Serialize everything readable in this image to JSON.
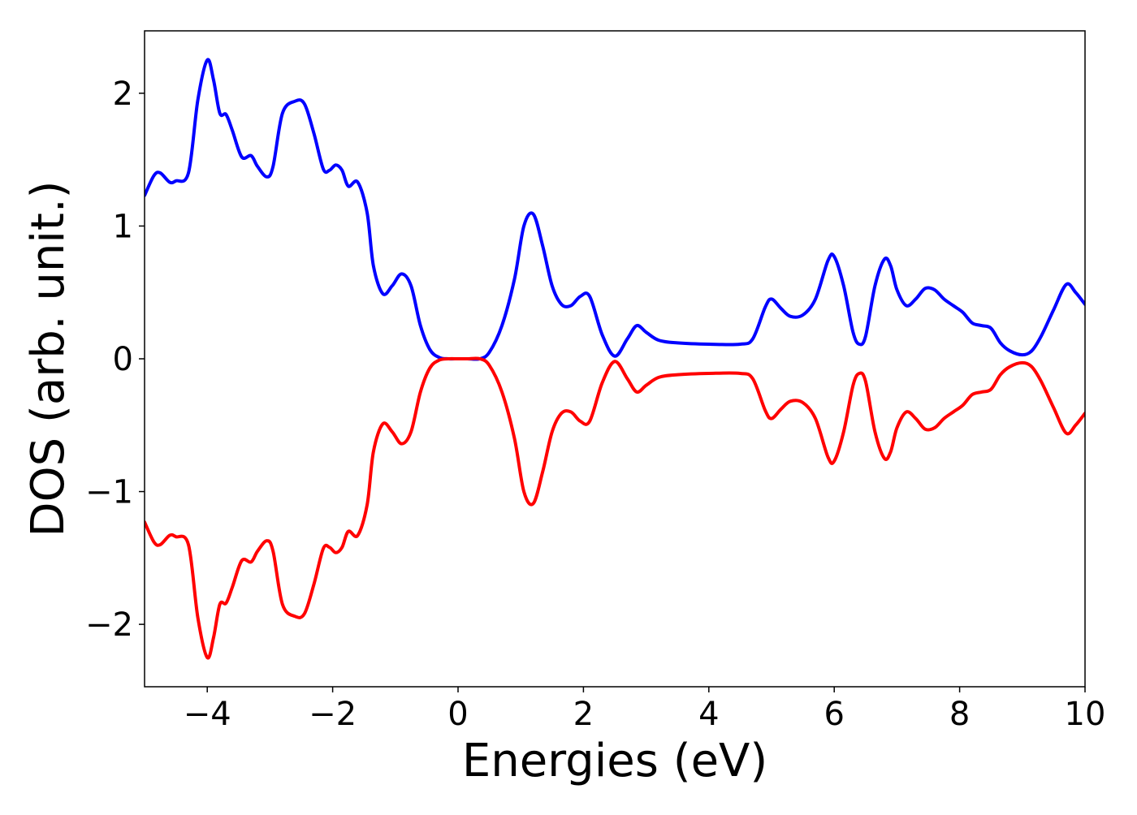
{
  "chart_data": {
    "type": "line",
    "title": "",
    "xlabel": "Energies (eV)",
    "ylabel": "DOS (arb. unit.)",
    "xlim": [
      -5,
      10
    ],
    "ylim": [
      -2.47,
      2.47
    ],
    "x_ticks": [
      -4,
      -2,
      0,
      2,
      4,
      6,
      8,
      10
    ],
    "y_ticks": [
      -2,
      -1,
      0,
      1,
      2
    ],
    "x_tick_labels": [
      "−4",
      "−2",
      "0",
      "2",
      "4",
      "6",
      "8",
      "10"
    ],
    "y_tick_labels": [
      "−2",
      "−1",
      "0",
      "1",
      "2"
    ],
    "grid": false,
    "legend": "none",
    "series": [
      {
        "color": "#0000ff",
        "x": [
          -5.0,
          -4.85,
          -4.75,
          -4.6,
          -4.5,
          -4.3,
          -4.15,
          -4.0,
          -3.9,
          -3.8,
          -3.7,
          -3.6,
          -3.45,
          -3.3,
          -3.2,
          -3.05,
          -2.95,
          -2.8,
          -2.6,
          -2.45,
          -2.3,
          -2.15,
          -2.05,
          -1.95,
          -1.85,
          -1.75,
          -1.6,
          -1.45,
          -1.35,
          -1.2,
          -1.05,
          -0.9,
          -0.75,
          -0.6,
          -0.45,
          -0.3,
          -0.15,
          0.0,
          0.15,
          0.35,
          0.5,
          0.7,
          0.9,
          1.05,
          1.2,
          1.35,
          1.5,
          1.65,
          1.8,
          1.95,
          2.1,
          2.3,
          2.5,
          2.7,
          2.85,
          3.0,
          3.2,
          3.5,
          4.0,
          4.5,
          4.7,
          4.9,
          5.0,
          5.15,
          5.3,
          5.5,
          5.7,
          5.9,
          6.0,
          6.15,
          6.3,
          6.4,
          6.5,
          6.65,
          6.8,
          6.9,
          7.0,
          7.15,
          7.3,
          7.45,
          7.6,
          7.75,
          7.9,
          8.05,
          8.2,
          8.35,
          8.5,
          8.65,
          8.8,
          9.0,
          9.15,
          9.3,
          9.5,
          9.7,
          9.85,
          10.0
        ],
        "y": [
          1.23,
          1.38,
          1.4,
          1.33,
          1.34,
          1.4,
          1.95,
          2.25,
          2.1,
          1.85,
          1.84,
          1.72,
          1.52,
          1.53,
          1.45,
          1.37,
          1.45,
          1.85,
          1.94,
          1.92,
          1.7,
          1.43,
          1.42,
          1.46,
          1.42,
          1.3,
          1.33,
          1.1,
          0.7,
          0.49,
          0.55,
          0.64,
          0.55,
          0.25,
          0.07,
          0.01,
          0.0,
          0.0,
          0.0,
          0.0,
          0.05,
          0.25,
          0.6,
          1.0,
          1.09,
          0.85,
          0.55,
          0.41,
          0.4,
          0.47,
          0.47,
          0.18,
          0.02,
          0.15,
          0.25,
          0.2,
          0.14,
          0.12,
          0.11,
          0.11,
          0.15,
          0.39,
          0.45,
          0.38,
          0.32,
          0.33,
          0.45,
          0.74,
          0.77,
          0.55,
          0.2,
          0.11,
          0.17,
          0.55,
          0.75,
          0.7,
          0.52,
          0.4,
          0.45,
          0.53,
          0.52,
          0.45,
          0.4,
          0.35,
          0.27,
          0.25,
          0.23,
          0.12,
          0.06,
          0.03,
          0.06,
          0.17,
          0.37,
          0.56,
          0.5,
          0.41
        ]
      },
      {
        "color": "#ff0000",
        "x": [
          -5.0,
          -4.85,
          -4.75,
          -4.6,
          -4.5,
          -4.3,
          -4.15,
          -4.0,
          -3.9,
          -3.8,
          -3.7,
          -3.6,
          -3.45,
          -3.3,
          -3.2,
          -3.05,
          -2.95,
          -2.8,
          -2.6,
          -2.45,
          -2.3,
          -2.15,
          -2.05,
          -1.95,
          -1.85,
          -1.75,
          -1.6,
          -1.45,
          -1.35,
          -1.2,
          -1.05,
          -0.9,
          -0.75,
          -0.6,
          -0.45,
          -0.3,
          -0.15,
          0.0,
          0.15,
          0.35,
          0.5,
          0.7,
          0.9,
          1.05,
          1.2,
          1.35,
          1.5,
          1.65,
          1.8,
          1.95,
          2.1,
          2.3,
          2.5,
          2.7,
          2.85,
          3.0,
          3.2,
          3.5,
          4.0,
          4.5,
          4.7,
          4.9,
          5.0,
          5.15,
          5.3,
          5.5,
          5.7,
          5.9,
          6.0,
          6.15,
          6.3,
          6.4,
          6.5,
          6.65,
          6.8,
          6.9,
          7.0,
          7.15,
          7.3,
          7.45,
          7.6,
          7.75,
          7.9,
          8.05,
          8.2,
          8.35,
          8.5,
          8.65,
          8.8,
          9.0,
          9.15,
          9.3,
          9.5,
          9.7,
          9.85,
          10.0
        ],
        "y": [
          -1.23,
          -1.38,
          -1.4,
          -1.33,
          -1.34,
          -1.4,
          -1.95,
          -2.25,
          -2.1,
          -1.85,
          -1.84,
          -1.72,
          -1.52,
          -1.53,
          -1.45,
          -1.37,
          -1.45,
          -1.85,
          -1.94,
          -1.92,
          -1.7,
          -1.43,
          -1.42,
          -1.46,
          -1.42,
          -1.3,
          -1.33,
          -1.1,
          -0.7,
          -0.49,
          -0.55,
          -0.64,
          -0.55,
          -0.25,
          -0.07,
          -0.01,
          0.0,
          0.0,
          0.0,
          0.0,
          -0.05,
          -0.25,
          -0.6,
          -1.0,
          -1.09,
          -0.85,
          -0.55,
          -0.41,
          -0.4,
          -0.47,
          -0.47,
          -0.18,
          -0.02,
          -0.15,
          -0.25,
          -0.2,
          -0.14,
          -0.12,
          -0.11,
          -0.11,
          -0.15,
          -0.39,
          -0.45,
          -0.38,
          -0.32,
          -0.33,
          -0.45,
          -0.74,
          -0.77,
          -0.55,
          -0.2,
          -0.11,
          -0.17,
          -0.55,
          -0.75,
          -0.7,
          -0.52,
          -0.4,
          -0.45,
          -0.53,
          -0.52,
          -0.45,
          -0.4,
          -0.35,
          -0.27,
          -0.25,
          -0.23,
          -0.12,
          -0.06,
          -0.03,
          -0.06,
          -0.17,
          -0.37,
          -0.56,
          -0.5,
          -0.41
        ]
      }
    ]
  }
}
